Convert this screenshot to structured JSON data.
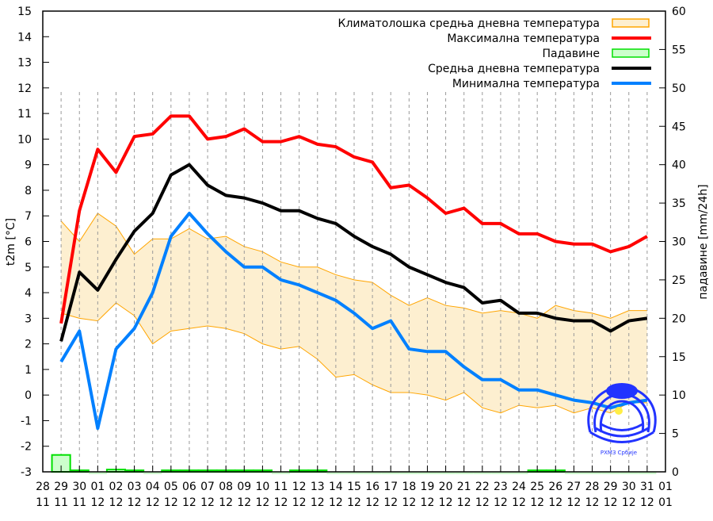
{
  "chart_data": {
    "type": "line",
    "ylabel": "t2m [°C]",
    "y2label": "падавине [mm/24h]",
    "ylim": [
      -3,
      15
    ],
    "y2lim": [
      0,
      60
    ],
    "yticks": [
      "-3",
      "-2",
      "-1",
      "0",
      "1",
      "2",
      "3",
      "4",
      "5",
      "6",
      "7",
      "8",
      "9",
      "10",
      "11",
      "12",
      "13",
      "14",
      "15"
    ],
    "y2ticks": [
      "0",
      "5",
      "10",
      "15",
      "20",
      "25",
      "30",
      "35",
      "40",
      "45",
      "50",
      "55",
      "60"
    ],
    "x_days": [
      "28",
      "29",
      "30",
      "01",
      "02",
      "03",
      "04",
      "05",
      "06",
      "07",
      "08",
      "09",
      "10",
      "11",
      "12",
      "13",
      "14",
      "15",
      "16",
      "17",
      "18",
      "19",
      "20",
      "21",
      "22",
      "23",
      "24",
      "25",
      "26",
      "27",
      "28",
      "29",
      "30",
      "31",
      "01"
    ],
    "x_months": [
      "11",
      "11",
      "11",
      "12",
      "12",
      "12",
      "12",
      "12",
      "12",
      "12",
      "12",
      "12",
      "12",
      "12",
      "12",
      "12",
      "12",
      "12",
      "12",
      "12",
      "12",
      "12",
      "12",
      "12",
      "12",
      "12",
      "12",
      "12",
      "12",
      "12",
      "12",
      "12",
      "12",
      "12",
      "01"
    ],
    "legend": {
      "placement": "top-right",
      "entries": [
        {
          "label": "Климатолошка средња дневна температура",
          "color": "#ffa500",
          "fill": "#fdefd0",
          "kind": "box"
        },
        {
          "label": "Максимална температура",
          "color": "#ff0000",
          "kind": "line"
        },
        {
          "label": "Падавине",
          "color": "#00e000",
          "fill": "#ccffcc",
          "kind": "box"
        },
        {
          "label": "Средња дневна температура",
          "color": "#000000",
          "kind": "line"
        },
        {
          "label": "Минимална температура",
          "color": "#0080ff",
          "kind": "line"
        }
      ]
    },
    "series_start_index": 1,
    "series": [
      {
        "name": "Климатолошка горња граница",
        "values": [
          6.8,
          6.0,
          7.1,
          6.6,
          5.5,
          6.1,
          6.1,
          6.5,
          6.1,
          6.2,
          5.8,
          5.6,
          5.2,
          5.0,
          5.0,
          4.7,
          4.5,
          4.4,
          3.9,
          3.5,
          3.8,
          3.5,
          3.4,
          3.2,
          3.3,
          3.2,
          3.0,
          3.5,
          3.3,
          3.2,
          3.0,
          3.3,
          3.3
        ]
      },
      {
        "name": "Климатолошка доња граница",
        "values": [
          3.2,
          3.0,
          2.9,
          3.6,
          3.1,
          2.0,
          2.5,
          2.6,
          2.7,
          2.6,
          2.4,
          2.0,
          1.8,
          1.9,
          1.4,
          0.7,
          0.8,
          0.4,
          0.1,
          0.1,
          0.0,
          -0.2,
          0.1,
          -0.5,
          -0.7,
          -0.4,
          -0.5,
          -0.4,
          -0.7,
          -0.5,
          -0.7,
          -0.3,
          -0.3
        ]
      },
      {
        "name": "Максимална температура",
        "values": [
          2.8,
          7.2,
          9.6,
          8.7,
          10.1,
          10.2,
          10.9,
          10.9,
          10.0,
          10.1,
          10.4,
          9.9,
          9.9,
          10.1,
          9.8,
          9.7,
          9.3,
          9.1,
          8.1,
          8.2,
          7.7,
          7.1,
          7.3,
          6.7,
          6.7,
          6.3,
          6.3,
          6.0,
          5.9,
          5.9,
          5.6,
          5.8,
          6.2
        ]
      },
      {
        "name": "Средња дневна температура",
        "values": [
          2.1,
          4.8,
          4.1,
          5.3,
          6.4,
          7.1,
          8.6,
          9.0,
          8.2,
          7.8,
          7.7,
          7.5,
          7.2,
          7.2,
          6.9,
          6.7,
          6.2,
          5.8,
          5.5,
          5.0,
          4.7,
          4.4,
          4.2,
          3.6,
          3.7,
          3.2,
          3.2,
          3.0,
          2.9,
          2.9,
          2.5,
          2.9,
          3.0
        ]
      },
      {
        "name": "Минимална температура",
        "values": [
          1.3,
          2.5,
          -1.3,
          1.8,
          2.6,
          4.0,
          6.2,
          7.1,
          6.3,
          5.6,
          5.0,
          5.0,
          4.5,
          4.3,
          4.0,
          3.7,
          3.2,
          2.6,
          2.9,
          1.8,
          1.7,
          1.7,
          1.1,
          0.6,
          0.6,
          0.2,
          0.2,
          0.0,
          -0.2,
          -0.3,
          -0.5,
          -0.3,
          -0.2
        ]
      },
      {
        "name": "Падавине",
        "axis": "y2",
        "values": [
          2.2,
          0.2,
          0,
          0.3,
          0.2,
          0,
          0.2,
          0.2,
          0.2,
          0.2,
          0.2,
          0.2,
          0,
          0.2,
          0.2,
          0,
          0,
          0,
          0,
          0,
          0,
          0,
          0,
          0,
          0,
          0,
          0.2,
          0.2,
          0,
          0,
          0,
          0,
          0
        ]
      }
    ],
    "logo_text": "РХМЗ Србије"
  }
}
